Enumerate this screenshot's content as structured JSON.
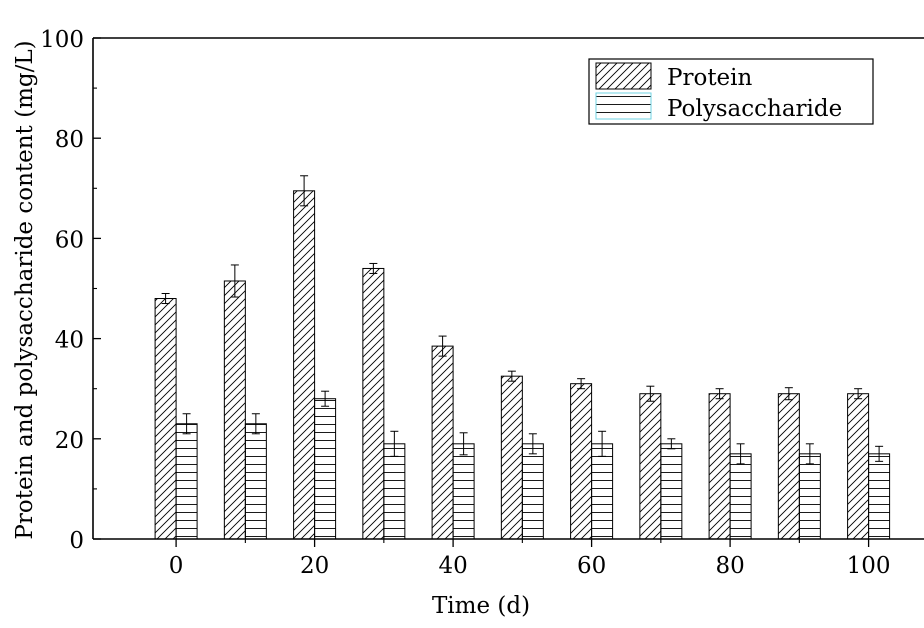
{
  "chart_data": {
    "type": "bar",
    "title": "",
    "xlabel": "Time (d)",
    "ylabel": "Protein and polysaccharide content (mg/L)",
    "xlim": [
      -12,
      108
    ],
    "ylim": [
      0,
      100
    ],
    "x_ticks": [
      "0",
      "20",
      "40",
      "60",
      "80",
      "100"
    ],
    "y_ticks": [
      "0",
      "20",
      "40",
      "60",
      "80",
      "100"
    ],
    "x": [
      0,
      10,
      20,
      30,
      40,
      50,
      60,
      70,
      80,
      90,
      100
    ],
    "grid": false,
    "legend_position": "top-right",
    "series": [
      {
        "name": "Protein",
        "pattern": "diagonal-hatch",
        "values": [
          48,
          51.5,
          69.5,
          54,
          38.5,
          32.5,
          31,
          29,
          29,
          29,
          29
        ],
        "errors": [
          1.0,
          3.2,
          3.0,
          1.0,
          2.0,
          1.0,
          1.0,
          1.5,
          1.0,
          1.2,
          1.0
        ]
      },
      {
        "name": "Polysaccharide",
        "pattern": "horizontal-hatch",
        "values": [
          23,
          23,
          28,
          19,
          19,
          19,
          19,
          19,
          17,
          17,
          17
        ],
        "errors": [
          2.0,
          2.0,
          1.5,
          2.5,
          2.2,
          2.0,
          2.5,
          1.0,
          2.0,
          2.0,
          1.5
        ]
      }
    ]
  }
}
